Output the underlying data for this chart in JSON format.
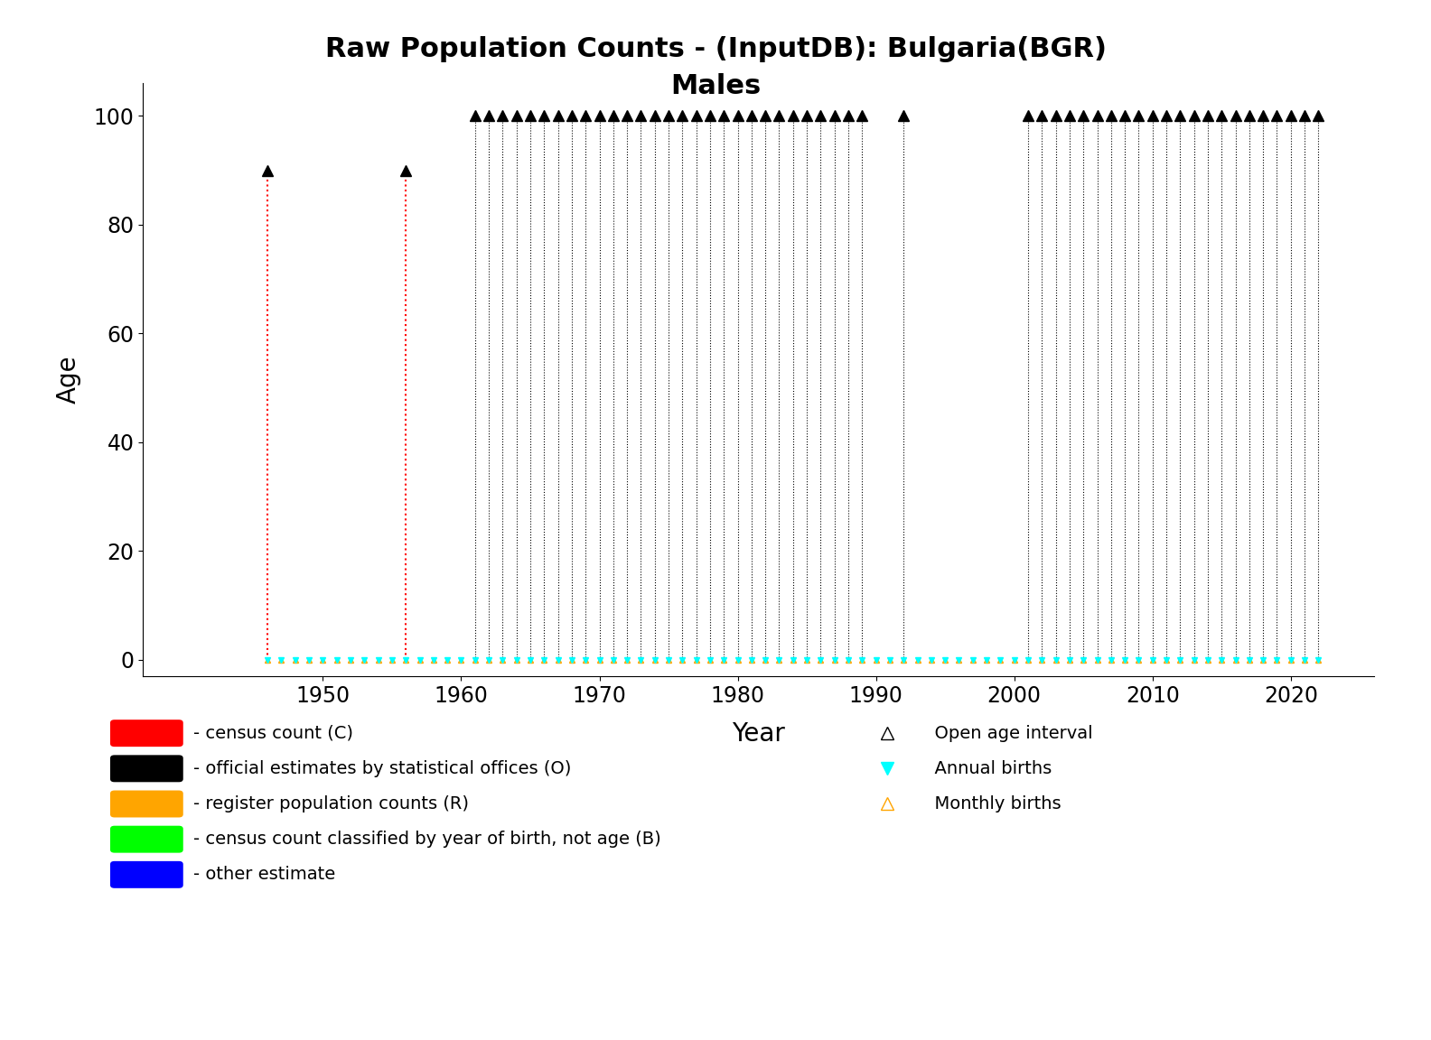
{
  "title_line1": "Raw Population Counts - (InputDB): Bulgaria(BGR)",
  "title_line2": "Males",
  "xlabel": "Year",
  "ylabel": "Age",
  "xlim": [
    1937,
    2026
  ],
  "ylim": [
    -3,
    106
  ],
  "yticks": [
    0,
    20,
    40,
    60,
    80,
    100
  ],
  "xticks": [
    1950,
    1960,
    1970,
    1980,
    1990,
    2000,
    2010,
    2020
  ],
  "census_years": [
    1946,
    1956
  ],
  "census_max_age": 90,
  "census_color": "#FF0000",
  "official_years": [
    1961,
    1962,
    1963,
    1964,
    1965,
    1966,
    1967,
    1968,
    1969,
    1970,
    1971,
    1972,
    1973,
    1974,
    1975,
    1976,
    1977,
    1978,
    1979,
    1980,
    1981,
    1982,
    1983,
    1984,
    1985,
    1986,
    1987,
    1988,
    1989,
    1992,
    2001,
    2002,
    2003,
    2004,
    2005,
    2006,
    2007,
    2008,
    2009,
    2010,
    2011,
    2012,
    2013,
    2014,
    2015,
    2016,
    2017,
    2018,
    2019,
    2020,
    2021,
    2022
  ],
  "official_max_age": 100,
  "official_color": "#000000",
  "annual_births_years": [
    1946,
    1947,
    1948,
    1949,
    1950,
    1951,
    1952,
    1953,
    1954,
    1955,
    1956,
    1957,
    1958,
    1959,
    1960,
    1961,
    1962,
    1963,
    1964,
    1965,
    1966,
    1967,
    1968,
    1969,
    1970,
    1971,
    1972,
    1973,
    1974,
    1975,
    1976,
    1977,
    1978,
    1979,
    1980,
    1981,
    1982,
    1983,
    1984,
    1985,
    1986,
    1987,
    1988,
    1989,
    1990,
    1991,
    1992,
    1993,
    1994,
    1995,
    1996,
    1997,
    1998,
    1999,
    2000,
    2001,
    2002,
    2003,
    2004,
    2005,
    2006,
    2007,
    2008,
    2009,
    2010,
    2011,
    2012,
    2013,
    2014,
    2015,
    2016,
    2017,
    2018,
    2019,
    2020,
    2021,
    2022
  ],
  "annual_births_color": "#00FFFF",
  "monthly_births_years": [
    1946,
    1947,
    1948,
    1949,
    1950,
    1951,
    1952,
    1953,
    1954,
    1955,
    1956,
    1957,
    1958,
    1959,
    1960,
    1961,
    1962,
    1963,
    1964,
    1965,
    1966,
    1967,
    1968,
    1969,
    1970,
    1971,
    1972,
    1973,
    1974,
    1975,
    1976,
    1977,
    1978,
    1979,
    1980,
    1981,
    1982,
    1983,
    1984,
    1985,
    1986,
    1987,
    1988,
    1989,
    1990,
    1991,
    1992,
    1993,
    1994,
    1995,
    1996,
    1997,
    1998,
    1999,
    2000,
    2001,
    2002,
    2003,
    2004,
    2005,
    2006,
    2007,
    2008,
    2009,
    2010,
    2011,
    2012,
    2013,
    2014,
    2015,
    2016,
    2017,
    2018,
    2019,
    2020,
    2021,
    2022
  ],
  "monthly_births_color": "#FFA500",
  "legend_left": [
    {
      "color": "#FF0000",
      "label": "- census count (C)"
    },
    {
      "color": "#000000",
      "label": "- official estimates by statistical offices (O)"
    },
    {
      "color": "#FFA500",
      "label": "- register population counts (R)"
    },
    {
      "color": "#00FF00",
      "label": "- census count classified by year of birth, not age (B)"
    },
    {
      "color": "#0000FF",
      "label": "- other estimate"
    }
  ],
  "legend_right": [
    {
      "marker": "^",
      "fillstyle": "none",
      "color": "#000000",
      "label": "Open age interval"
    },
    {
      "marker": "v",
      "fillstyle": "full",
      "color": "#00FFFF",
      "label": "Annual births"
    },
    {
      "marker": "^",
      "fillstyle": "none",
      "color": "#FFA500",
      "label": "Monthly births"
    }
  ],
  "bg_color": "#FFFFFF",
  "title_fontsize": 22,
  "axis_label_fontsize": 20,
  "tick_fontsize": 17,
  "legend_fontsize": 14
}
